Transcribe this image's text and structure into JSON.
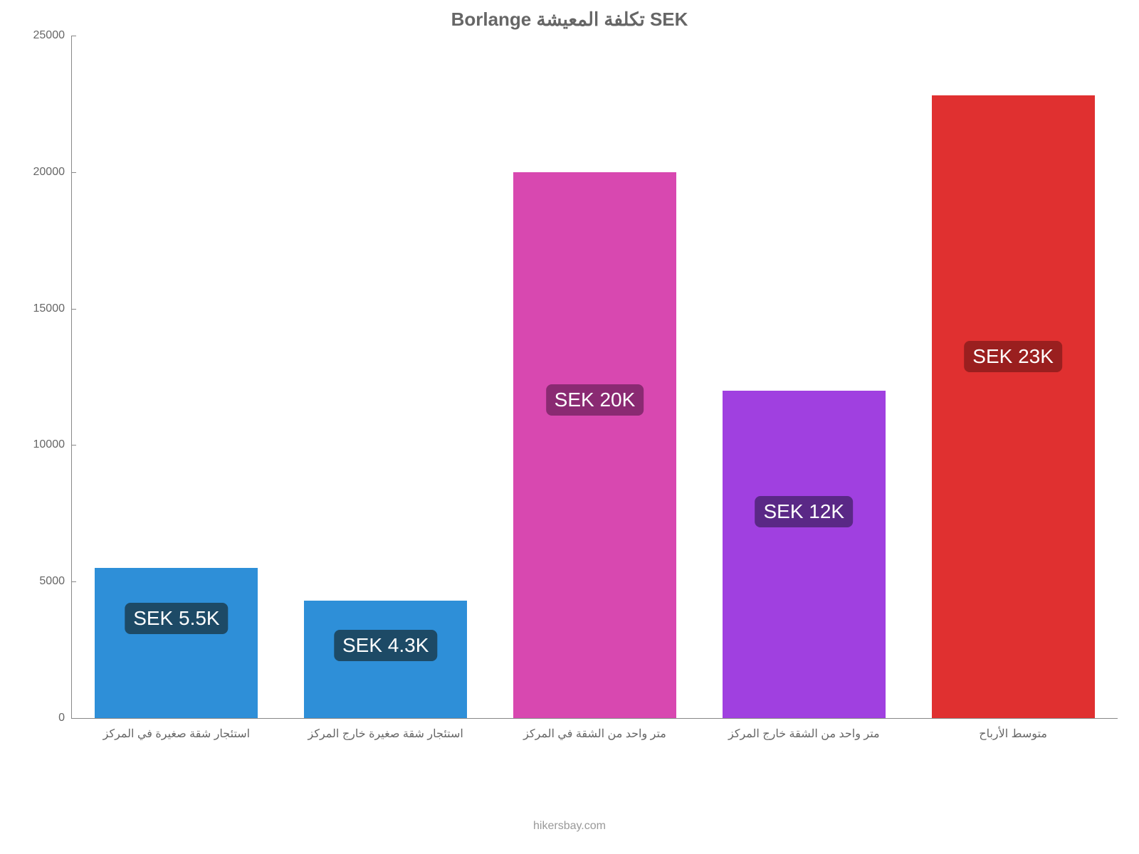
{
  "chart": {
    "type": "bar",
    "title": "Borlange تكلفة المعيشة SEK",
    "title_color": "#666666",
    "title_fontsize": 26,
    "background_color": "#ffffff",
    "axis_color": "#888888",
    "ylim": [
      0,
      25000
    ],
    "yticks": [
      0,
      5000,
      10000,
      15000,
      20000,
      25000
    ],
    "ytick_labels": [
      "0",
      "5000",
      "10000",
      "15000",
      "20000",
      "25000"
    ],
    "tick_color": "#666666",
    "tick_fontsize": 16,
    "bar_width_ratio": 0.78,
    "categories": [
      "استئجار شقة صغيرة في المركز",
      "استئجار شقة صغيرة خارج المركز",
      "متر واحد من الشقة في المركز",
      "متر واحد من الشقة خارج المركز",
      "متوسط الأرباح"
    ],
    "values": [
      5500,
      4300,
      20000,
      12000,
      22800
    ],
    "value_labels": [
      "SEK 5.5K",
      "SEK 4.3K",
      "SEK 20K",
      "SEK 12K",
      "SEK 23K"
    ],
    "bar_colors": [
      "#2e8fd8",
      "#2e8fd8",
      "#d848b0",
      "#a040e0",
      "#e03030"
    ],
    "badge_colors": [
      "#1d4a66",
      "#1d4a66",
      "#8a2a72",
      "#5a2886",
      "#9a1f1f"
    ],
    "badge_text_color": "#ffffff",
    "badge_fontsize": 28,
    "badge_y_values": [
      3700,
      2700,
      11700,
      7600,
      13300
    ],
    "credit": "hikersbay.com",
    "credit_color": "#999999"
  }
}
